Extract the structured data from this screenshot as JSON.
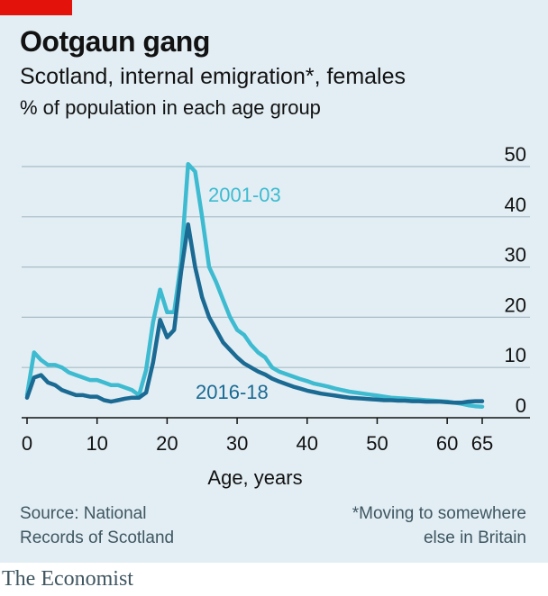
{
  "brand": "The Economist",
  "source": [
    "Source: National",
    "Records of Scotland"
  ],
  "footnote": [
    "*Moving to somewhere",
    "else in Britain"
  ],
  "colors": {
    "accent_red": "#e3120b",
    "series_2001": "#3ebbd0",
    "series_2016": "#1b6a93",
    "panel_bg": "#e2eef4",
    "grid": "#a9bcc6"
  },
  "chart_data": {
    "type": "line",
    "title": "Ootgaun gang",
    "subtitle": "Scotland, internal emigration*, females",
    "unit_note": "% of population in each age group",
    "xlabel": "Age, years",
    "ylabel": "",
    "xlim": [
      0,
      65
    ],
    "ylim": [
      0,
      50
    ],
    "x_ticks": [
      0,
      10,
      20,
      30,
      40,
      50,
      60,
      65
    ],
    "y_ticks": [
      0,
      10,
      20,
      30,
      40,
      50
    ],
    "grid": true,
    "x": [
      0,
      1,
      2,
      3,
      4,
      5,
      6,
      7,
      8,
      9,
      10,
      11,
      12,
      13,
      14,
      15,
      16,
      17,
      18,
      19,
      20,
      21,
      22,
      23,
      24,
      25,
      26,
      27,
      28,
      29,
      30,
      31,
      32,
      33,
      34,
      35,
      36,
      37,
      38,
      39,
      40,
      41,
      42,
      43,
      44,
      45,
      46,
      47,
      48,
      49,
      50,
      51,
      52,
      53,
      54,
      55,
      56,
      57,
      58,
      59,
      60,
      61,
      62,
      63,
      64,
      65
    ],
    "series": [
      {
        "name": "2001-03",
        "values": [
          4.5,
          13,
          11.5,
          10.5,
          10.5,
          10,
          9,
          8.5,
          8,
          7.5,
          7.5,
          7,
          6.5,
          6.5,
          6,
          5.5,
          4.5,
          9.5,
          19,
          25.5,
          21,
          21,
          31,
          50.5,
          49,
          40,
          30,
          27,
          23.5,
          20,
          17.5,
          16.5,
          14.5,
          13,
          12,
          10,
          9.2,
          8.7,
          8.2,
          7.7,
          7.3,
          6.8,
          6.5,
          6.2,
          5.8,
          5.5,
          5.2,
          5,
          4.8,
          4.6,
          4.4,
          4.2,
          4,
          3.9,
          3.8,
          3.7,
          3.6,
          3.5,
          3.4,
          3.3,
          3.2,
          3,
          2.8,
          2.5,
          2.3,
          2.2
        ]
      },
      {
        "name": "2016-18",
        "values": [
          4,
          8,
          8.5,
          7,
          6.5,
          5.5,
          5,
          4.5,
          4.5,
          4.2,
          4.2,
          3.5,
          3.2,
          3.5,
          3.8,
          4,
          4,
          5,
          11,
          19.5,
          16,
          17.5,
          29,
          38.5,
          30,
          24,
          20,
          17.5,
          15,
          13.5,
          12,
          10.8,
          10,
          9.2,
          8.6,
          7.8,
          7.2,
          6.7,
          6.2,
          5.8,
          5.4,
          5.1,
          4.8,
          4.6,
          4.4,
          4.2,
          4,
          3.9,
          3.8,
          3.7,
          3.6,
          3.5,
          3.5,
          3.4,
          3.4,
          3.3,
          3.3,
          3.2,
          3.2,
          3.2,
          3.1,
          3,
          3,
          3.2,
          3.3,
          3.3
        ]
      }
    ],
    "annotations": [
      "2001-03",
      "2016-18"
    ]
  }
}
